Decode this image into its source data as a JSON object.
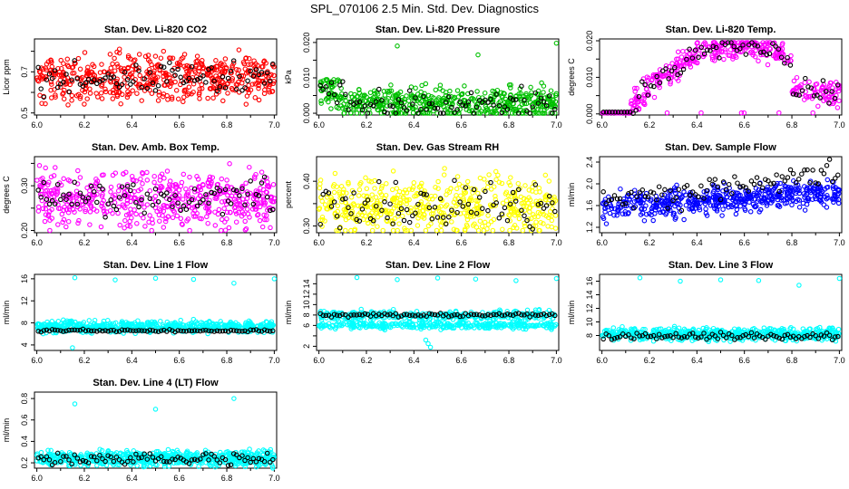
{
  "figure_title": "SPL_070106  2.5 Min. Std. Dev. Diagnostics",
  "chart_data": [
    {
      "type": "scatter",
      "title": "Stan. Dev. Li-820 CO2",
      "xlabel": "",
      "ylabel": "Licor ppm",
      "xlim": [
        5.99,
        7.01
      ],
      "ylim": [
        0.49,
        0.86
      ],
      "xticks": [
        "6.0",
        "6.2",
        "6.4",
        "6.6",
        "6.8",
        "7.0"
      ],
      "yticks": [
        0.5,
        0.6,
        0.7,
        0.8
      ],
      "ytick_labels": [
        "0.5",
        "",
        "0.7",
        ""
      ],
      "color": "#ff0000",
      "profile": "co2",
      "n_color": 520,
      "n_black": 85
    },
    {
      "type": "scatter",
      "title": "Stan. Dev. Li-820 Pressure",
      "xlabel": "",
      "ylabel": "kPa",
      "xlim": [
        5.99,
        7.01
      ],
      "ylim": [
        -0.0005,
        0.021
      ],
      "xticks": [
        "6.0",
        "6.2",
        "6.4",
        "6.6",
        "6.8",
        "7.0"
      ],
      "yticks": [
        0,
        0.005,
        0.01,
        0.015,
        0.02
      ],
      "ytick_labels": [
        "0.000",
        "",
        "0.010",
        "",
        "0.020"
      ],
      "color": "#00c000",
      "profile": "pressure",
      "n_color": 520,
      "n_black": 85,
      "outliers": [
        [
          6.33,
          0.019
        ],
        [
          6.67,
          0.0165
        ],
        [
          7.0,
          0.0198
        ]
      ]
    },
    {
      "type": "scatter",
      "title": "Stan. Dev. Li-820 Temp.",
      "xlabel": "",
      "ylabel": "degrees C",
      "xlim": [
        5.99,
        7.01
      ],
      "ylim": [
        -0.0003,
        0.0205
      ],
      "xticks": [
        "6.0",
        "6.2",
        "6.4",
        "6.6",
        "6.8",
        "7.0"
      ],
      "yticks": [
        0,
        0.005,
        0.01,
        0.015,
        0.02
      ],
      "ytick_labels": [
        "0.000",
        "",
        "0.010",
        "",
        "0.020"
      ],
      "color": "#ff00ff",
      "profile": "temp",
      "n_color": 430,
      "n_black": 80
    },
    {
      "type": "scatter",
      "title": "Stan. Dev. Amb. Box Temp.",
      "xlabel": "",
      "ylabel": "degrees C",
      "xlim": [
        5.99,
        7.01
      ],
      "ylim": [
        0.195,
        0.365
      ],
      "xticks": [
        "6.0",
        "6.2",
        "6.4",
        "6.6",
        "6.8",
        "7.0"
      ],
      "yticks": [
        0.2,
        0.25,
        0.3,
        0.35
      ],
      "ytick_labels": [
        "0.20",
        "",
        "0.30",
        ""
      ],
      "color": "#ff00ff",
      "profile": "ambbox",
      "n_color": 520,
      "n_black": 85
    },
    {
      "type": "scatter",
      "title": "Stan. Dev. Gas Stream RH",
      "xlabel": "",
      "ylabel": "percent",
      "xlim": [
        5.99,
        7.01
      ],
      "ylim": [
        0.285,
        0.455
      ],
      "xticks": [
        "6.0",
        "6.2",
        "6.4",
        "6.6",
        "6.8",
        "7.0"
      ],
      "yticks": [
        0.3,
        0.35,
        0.4
      ],
      "ytick_labels": [
        "0.30",
        "",
        "0.40"
      ],
      "color": "#ffff00",
      "profile": "rh",
      "n_color": 520,
      "n_black": 85
    },
    {
      "type": "scatter",
      "title": "Stan. Dev. Sample Flow",
      "xlabel": "",
      "ylabel": "ml/min",
      "xlim": [
        5.99,
        7.01
      ],
      "ylim": [
        1.1,
        2.5
      ],
      "xticks": [
        "6.0",
        "6.2",
        "6.4",
        "6.6",
        "6.8",
        "7.0"
      ],
      "yticks": [
        1.2,
        1.6,
        2.0,
        2.4
      ],
      "ytick_labels": [
        "1.2",
        "1.6",
        "2.0",
        "2.4"
      ],
      "color": "#0000ff",
      "profile": "sample",
      "n_color": 520,
      "n_black": 85
    },
    {
      "type": "scatter",
      "title": "Stan. Dev. Line 1 Flow",
      "xlabel": "",
      "ylabel": "ml/min",
      "xlim": [
        5.99,
        7.01
      ],
      "ylim": [
        3.0,
        16.8
      ],
      "xticks": [
        "6.0",
        "6.2",
        "6.4",
        "6.6",
        "6.8",
        "7.0"
      ],
      "yticks": [
        4,
        8,
        12,
        16
      ],
      "ytick_labels": [
        "4",
        "8",
        "12",
        "16"
      ],
      "color": "#00ffff",
      "profile": "line1",
      "n_color": 600,
      "n_black": 85,
      "outliers": [
        [
          6.16,
          16.2
        ],
        [
          6.33,
          15.8
        ],
        [
          6.5,
          16.1
        ],
        [
          6.66,
          15.9
        ],
        [
          6.83,
          15.2
        ],
        [
          7.0,
          16.0
        ],
        [
          6.15,
          3.5
        ]
      ]
    },
    {
      "type": "scatter",
      "title": "Stan. Dev. Line 2 Flow",
      "xlabel": "",
      "ylabel": "ml/min",
      "xlim": [
        5.99,
        7.01
      ],
      "ylim": [
        1.2,
        15.8
      ],
      "xticks": [
        "6.0",
        "6.2",
        "6.4",
        "6.6",
        "6.8",
        "7.0"
      ],
      "yticks": [
        2,
        4,
        6,
        8,
        10,
        12,
        14
      ],
      "ytick_labels": [
        "2",
        "",
        "6",
        "8",
        "10",
        "12",
        "14"
      ],
      "color": "#00ffff",
      "profile": "line2",
      "n_color": 650,
      "n_black": 85,
      "outliers": [
        [
          6.16,
          15.2
        ],
        [
          6.33,
          14.8
        ],
        [
          6.5,
          15.1
        ],
        [
          6.66,
          14.9
        ],
        [
          6.83,
          14.6
        ],
        [
          7.0,
          15.0
        ],
        [
          6.46,
          2.5
        ],
        [
          6.47,
          1.8
        ],
        [
          6.45,
          3.2
        ]
      ]
    },
    {
      "type": "scatter",
      "title": "Stan. Dev. Line 3 Flow",
      "xlabel": "",
      "ylabel": "ml/min",
      "xlim": [
        5.99,
        7.01
      ],
      "ylim": [
        5.8,
        17.0
      ],
      "xticks": [
        "6.0",
        "6.2",
        "6.4",
        "6.6",
        "6.8",
        "7.0"
      ],
      "yticks": [
        8,
        10,
        12,
        14,
        16
      ],
      "ytick_labels": [
        "8",
        "10",
        "12",
        "14",
        "16"
      ],
      "color": "#00ffff",
      "profile": "line3",
      "n_color": 600,
      "n_black": 85,
      "outliers": [
        [
          6.16,
          16.5
        ],
        [
          6.33,
          16.0
        ],
        [
          6.5,
          16.2
        ],
        [
          6.66,
          16.1
        ],
        [
          6.83,
          15.4
        ],
        [
          7.0,
          16.4
        ]
      ]
    },
    {
      "type": "scatter",
      "title": "Stan. Dev. Line 4 (LT) Flow",
      "xlabel": "",
      "ylabel": "ml/min",
      "xlim": [
        5.99,
        7.01
      ],
      "ylim": [
        0.15,
        0.86
      ],
      "xticks": [
        "6.0",
        "6.2",
        "6.4",
        "6.6",
        "6.8",
        "7.0"
      ],
      "yticks": [
        0.2,
        0.4,
        0.6,
        0.8
      ],
      "ytick_labels": [
        "0.2",
        "0.4",
        "0.6",
        "0.8"
      ],
      "color": "#00ffff",
      "profile": "line4",
      "n_color": 650,
      "n_black": 85,
      "outliers": [
        [
          6.16,
          0.75
        ],
        [
          6.5,
          0.7
        ],
        [
          6.83,
          0.8
        ]
      ]
    }
  ]
}
